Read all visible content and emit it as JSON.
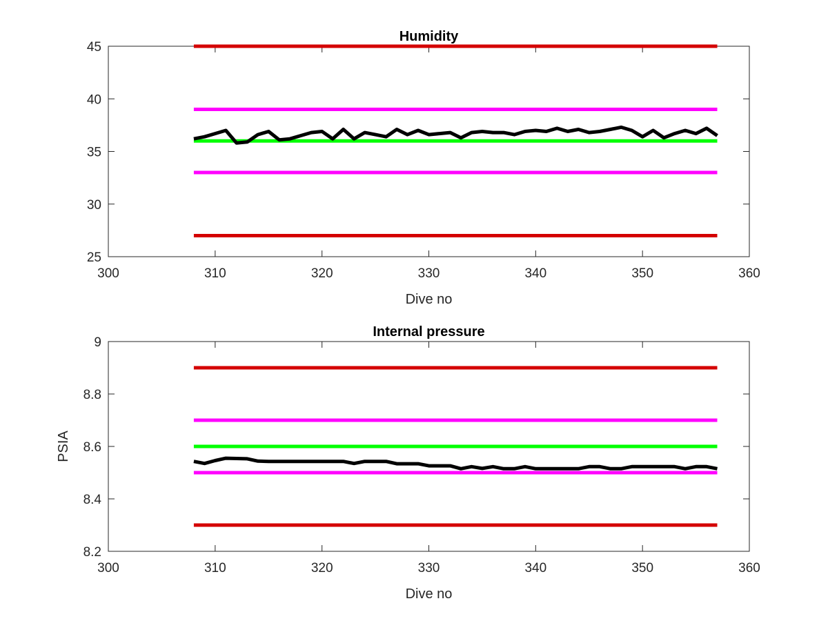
{
  "figure": {
    "background": "#ffffff"
  },
  "chart_data": [
    {
      "type": "line",
      "title": "Humidity",
      "xlabel": "Dive no",
      "ylabel": "",
      "xlim": [
        300,
        360
      ],
      "ylim": [
        25,
        45
      ],
      "xticks": [
        300,
        310,
        320,
        330,
        340,
        350,
        360
      ],
      "yticks": [
        25,
        30,
        35,
        40,
        45
      ],
      "grid": false,
      "series": [
        {
          "color": "#d40000",
          "x": [
            308,
            357
          ],
          "y": [
            45,
            45
          ]
        },
        {
          "color": "#ff00ff",
          "x": [
            308,
            357
          ],
          "y": [
            39,
            39
          ]
        },
        {
          "color": "#00ff00",
          "x": [
            308,
            357
          ],
          "y": [
            36,
            36
          ]
        },
        {
          "color": "#ff00ff",
          "x": [
            308,
            357
          ],
          "y": [
            33,
            33
          ]
        },
        {
          "color": "#d40000",
          "x": [
            308,
            357
          ],
          "y": [
            27,
            27
          ]
        },
        {
          "color": "#000000",
          "x": [
            308,
            309,
            310,
            311,
            312,
            313,
            314,
            315,
            316,
            317,
            318,
            319,
            320,
            321,
            322,
            323,
            324,
            325,
            326,
            327,
            328,
            329,
            330,
            331,
            332,
            333,
            334,
            335,
            336,
            337,
            338,
            339,
            340,
            341,
            342,
            343,
            344,
            345,
            346,
            347,
            348,
            349,
            350,
            351,
            352,
            353,
            354,
            355,
            356,
            357
          ],
          "y": [
            36.2,
            36.4,
            36.7,
            37.0,
            35.8,
            35.9,
            36.6,
            36.9,
            36.1,
            36.2,
            36.5,
            36.8,
            36.9,
            36.2,
            37.1,
            36.2,
            36.8,
            36.6,
            36.4,
            37.1,
            36.6,
            37.0,
            36.6,
            36.7,
            36.8,
            36.3,
            36.8,
            36.9,
            36.8,
            36.8,
            36.6,
            36.9,
            37.0,
            36.9,
            37.2,
            36.9,
            37.1,
            36.8,
            36.9,
            37.1,
            37.3,
            37.0,
            36.4,
            37.0,
            36.3,
            36.7,
            37.0,
            36.7,
            37.2,
            36.5
          ]
        }
      ]
    },
    {
      "type": "line",
      "title": "Internal pressure",
      "xlabel": "Dive no",
      "ylabel": "PSIA",
      "xlim": [
        300,
        360
      ],
      "ylim": [
        8.2,
        9
      ],
      "xticks": [
        300,
        310,
        320,
        330,
        340,
        350,
        360
      ],
      "yticks": [
        "8.2",
        "8.4",
        "8.6",
        "8.8",
        "9"
      ],
      "grid": false,
      "series": [
        {
          "color": "#d40000",
          "x": [
            308,
            357
          ],
          "y": [
            8.9,
            8.9
          ]
        },
        {
          "color": "#ff00ff",
          "x": [
            308,
            357
          ],
          "y": [
            8.7,
            8.7
          ]
        },
        {
          "color": "#00ff00",
          "x": [
            308,
            357
          ],
          "y": [
            8.6,
            8.6
          ]
        },
        {
          "color": "#ff00ff",
          "x": [
            308,
            357
          ],
          "y": [
            8.5,
            8.5
          ]
        },
        {
          "color": "#d40000",
          "x": [
            308,
            357
          ],
          "y": [
            8.3,
            8.3
          ]
        },
        {
          "color": "#000000",
          "x": [
            308,
            309,
            310,
            311,
            312,
            313,
            314,
            315,
            316,
            317,
            318,
            319,
            320,
            321,
            322,
            323,
            324,
            325,
            326,
            327,
            328,
            329,
            330,
            331,
            332,
            333,
            334,
            335,
            336,
            337,
            338,
            339,
            340,
            341,
            342,
            343,
            344,
            345,
            346,
            347,
            348,
            349,
            350,
            351,
            352,
            353,
            354,
            355,
            356,
            357
          ],
          "y": [
            8.543,
            8.535,
            8.546,
            8.555,
            8.554,
            8.553,
            8.544,
            8.543,
            8.543,
            8.543,
            8.543,
            8.543,
            8.543,
            8.543,
            8.543,
            8.535,
            8.543,
            8.543,
            8.543,
            8.534,
            8.534,
            8.534,
            8.526,
            8.526,
            8.526,
            8.515,
            8.523,
            8.516,
            8.523,
            8.515,
            8.515,
            8.523,
            8.515,
            8.515,
            8.515,
            8.515,
            8.515,
            8.523,
            8.523,
            8.515,
            8.515,
            8.523,
            8.523,
            8.523,
            8.523,
            8.523,
            8.515,
            8.523,
            8.523,
            8.515
          ]
        }
      ]
    }
  ]
}
